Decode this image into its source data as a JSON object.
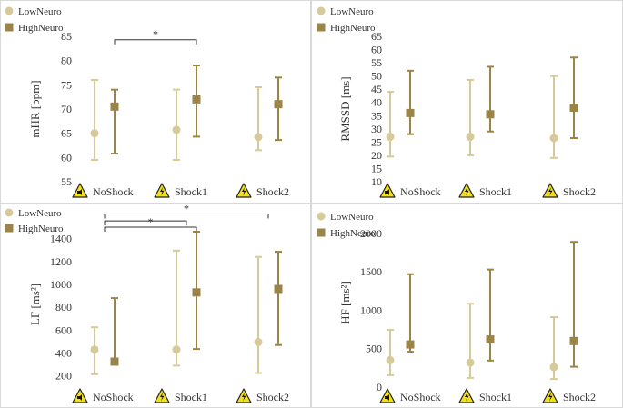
{
  "colors": {
    "low": "#d6c99a",
    "high": "#9a8448",
    "frame": "#d9d9d9",
    "icon_yellow": "#f2e01b"
  },
  "legend": {
    "low": "LowNeuro",
    "high": "HighNeuro"
  },
  "chart_data": [
    {
      "type": "errorbar",
      "ylabel": "mHR [bpm]",
      "ylim": [
        55,
        85
      ],
      "yticks": [
        55,
        60,
        65,
        70,
        75,
        80,
        85
      ],
      "categories": [
        "NoShock",
        "Shock1",
        "Shock2"
      ],
      "legend_labels": [
        "LowNeuro",
        "HighNeuro"
      ],
      "series": [
        {
          "name": "LowNeuro",
          "values": [
            65.0,
            65.7,
            64.2
          ],
          "lower": [
            59.5,
            59.5,
            61.5
          ],
          "upper": [
            76.0,
            74.0,
            74.5
          ]
        },
        {
          "name": "HighNeuro",
          "values": [
            70.5,
            72.0,
            71.0
          ],
          "lower": [
            60.8,
            64.3,
            63.6
          ],
          "upper": [
            74.0,
            79.0,
            76.5
          ]
        }
      ],
      "brackets": [
        {
          "from": [
            0,
            1
          ],
          "to": [
            1,
            1
          ],
          "label": "*",
          "at": 84.3
        }
      ]
    },
    {
      "type": "errorbar",
      "ylabel": "RMSSD [ms]",
      "ylim": [
        10,
        65
      ],
      "yticks": [
        10,
        15,
        20,
        25,
        30,
        35,
        40,
        45,
        50,
        55,
        60,
        65
      ],
      "categories": [
        "NoShock",
        "Shock1",
        "Shock2"
      ],
      "legend_labels": [
        "LowNeuro",
        "HighNeuro"
      ],
      "series": [
        {
          "name": "LowNeuro",
          "values": [
            27.0,
            27.0,
            26.5
          ],
          "lower": [
            19.5,
            20.0,
            19.0
          ],
          "upper": [
            44.0,
            48.5,
            50.0
          ]
        },
        {
          "name": "HighNeuro",
          "values": [
            36.0,
            35.5,
            38.0
          ],
          "lower": [
            28.0,
            29.0,
            26.5
          ],
          "upper": [
            52.0,
            53.5,
            57.0
          ]
        }
      ],
      "brackets": []
    },
    {
      "type": "errorbar",
      "ylabel": "LF [ms²]",
      "ylim": [
        150,
        1500
      ],
      "yticks": [
        200,
        400,
        600,
        800,
        1000,
        1200,
        1400
      ],
      "categories": [
        "NoShock",
        "Shock1",
        "Shock2"
      ],
      "legend_labels": [
        "LowNeuro",
        "HighNeuro"
      ],
      "series": [
        {
          "name": "LowNeuro",
          "values": [
            430,
            430,
            495
          ],
          "lower": [
            215,
            290,
            225
          ],
          "upper": [
            625,
            1295,
            1240
          ]
        },
        {
          "name": "HighNeuro",
          "values": [
            325,
            930,
            960
          ],
          "lower": [
            325,
            435,
            470
          ],
          "upper": [
            880,
            1460,
            1285
          ]
        }
      ],
      "brackets": [
        {
          "from": [
            0,
            0.5
          ],
          "to": [
            2,
            0.5
          ],
          "label": "*",
          "at": 1615
        },
        {
          "from": [
            0,
            0.5
          ],
          "to": [
            1,
            0.5
          ],
          "label": "",
          "at": 1555
        },
        {
          "from": [
            0,
            0.5
          ],
          "to": [
            1,
            1
          ],
          "label": "*",
          "at": 1500
        }
      ]
    },
    {
      "type": "errorbar",
      "ylabel": "HF [ms²]",
      "ylim": [
        0,
        2200
      ],
      "yticks": [
        0,
        500,
        1000,
        1500,
        2000
      ],
      "categories": [
        "NoShock",
        "Shock1",
        "Shock2"
      ],
      "legend_labels": [
        "LowNeuro",
        "HighNeuro"
      ],
      "series": [
        {
          "name": "LowNeuro",
          "values": [
            350,
            320,
            260
          ],
          "lower": [
            155,
            120,
            105
          ],
          "upper": [
            745,
            1085,
            910
          ]
        },
        {
          "name": "HighNeuro",
          "values": [
            555,
            620,
            600
          ],
          "lower": [
            460,
            345,
            265
          ],
          "upper": [
            1470,
            1530,
            1890
          ]
        }
      ],
      "brackets": []
    }
  ]
}
